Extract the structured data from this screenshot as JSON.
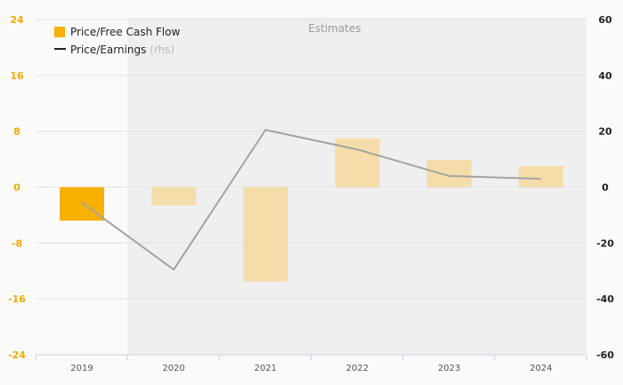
{
  "chart_data": {
    "type": "bar",
    "categories": [
      "2019",
      "2020",
      "2021",
      "2022",
      "2023",
      "2024"
    ],
    "series": [
      {
        "name": "Price/Free Cash Flow",
        "type": "bar",
        "axis": "left",
        "values": [
          -4.8,
          -2.6,
          -13.5,
          7.0,
          3.9,
          3.0
        ],
        "estimated": [
          false,
          true,
          true,
          true,
          true,
          true
        ]
      },
      {
        "name": "Price/Earnings",
        "legend_suffix": "(rhs)",
        "type": "line",
        "axis": "right",
        "values": [
          -5.5,
          -29.5,
          20.5,
          13.5,
          4.0,
          3.0
        ]
      }
    ],
    "left_axis": {
      "ticks": [
        "24",
        "16",
        "8",
        "0",
        "-8",
        "-16",
        "-24"
      ],
      "range": [
        -24,
        24
      ]
    },
    "right_axis": {
      "ticks": [
        "60",
        "40",
        "20",
        "0",
        "-20",
        "-40",
        "-60"
      ],
      "range": [
        -60,
        60
      ]
    },
    "shaded_region": {
      "label": "Estimates",
      "from_category": "2020"
    },
    "grid": true,
    "legend_position": "top-left",
    "colors": {
      "bar_actual": "#f7b000",
      "bar_estimate": "#f5ddaa",
      "line": "#a3a3a3",
      "legend_line": "#222222",
      "left_ticks": "#f2a900",
      "right_ticks": "#222222",
      "estimates_bg": "#efefef"
    }
  }
}
